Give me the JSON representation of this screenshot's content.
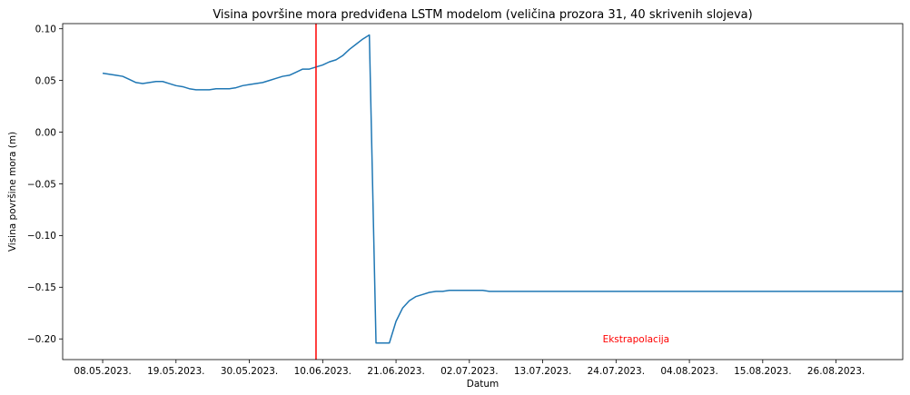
{
  "chart_data": {
    "type": "line",
    "title": "Visina površine mora predviđena LSTM modelom (veličina prozora 31, 40 skrivenih slojeva)",
    "xlabel": "Datum",
    "ylabel": "Visina površine mora (m)",
    "x_start_date": "2023-05-08",
    "xlim": [
      "2023-05-02",
      "2023-09-05"
    ],
    "ylim": [
      -0.22,
      0.105
    ],
    "x_ticks": [
      {
        "date": "2023-05-08",
        "label": "08.05.2023."
      },
      {
        "date": "2023-05-19",
        "label": "19.05.2023."
      },
      {
        "date": "2023-05-30",
        "label": "30.05.2023."
      },
      {
        "date": "2023-06-10",
        "label": "10.06.2023."
      },
      {
        "date": "2023-06-21",
        "label": "21.06.2023."
      },
      {
        "date": "2023-07-02",
        "label": "02.07.2023."
      },
      {
        "date": "2023-07-13",
        "label": "13.07.2023."
      },
      {
        "date": "2023-07-24",
        "label": "24.07.2023."
      },
      {
        "date": "2023-08-04",
        "label": "04.08.2023."
      },
      {
        "date": "2023-08-15",
        "label": "15.08.2023."
      },
      {
        "date": "2023-08-26",
        "label": "26.08.2023."
      }
    ],
    "y_ticks": [
      {
        "value": 0.1,
        "label": "0.10"
      },
      {
        "value": 0.05,
        "label": "0.05"
      },
      {
        "value": 0.0,
        "label": "0.00"
      },
      {
        "value": -0.05,
        "label": "−0.05"
      },
      {
        "value": -0.1,
        "label": "−0.10"
      },
      {
        "value": -0.15,
        "label": "−0.15"
      },
      {
        "value": -0.2,
        "label": "−0.20"
      }
    ],
    "series": [
      {
        "color": "#1f77b4",
        "values": [
          0.057,
          0.056,
          0.055,
          0.054,
          0.051,
          0.048,
          0.047,
          0.048,
          0.049,
          0.049,
          0.047,
          0.045,
          0.044,
          0.042,
          0.041,
          0.041,
          0.041,
          0.042,
          0.042,
          0.042,
          0.043,
          0.045,
          0.046,
          0.047,
          0.048,
          0.05,
          0.052,
          0.054,
          0.055,
          0.058,
          0.061,
          0.061,
          0.063,
          0.065,
          0.068,
          0.07,
          0.074,
          0.08,
          0.085,
          0.09,
          0.094,
          -0.204,
          -0.204,
          -0.204,
          -0.183,
          -0.17,
          -0.163,
          -0.159,
          -0.157,
          -0.155,
          -0.154,
          -0.154,
          -0.153,
          -0.153,
          -0.153,
          -0.153,
          -0.153,
          -0.153,
          -0.154,
          -0.154,
          -0.154,
          -0.154,
          -0.154,
          -0.154,
          -0.154,
          -0.154,
          -0.154,
          -0.154,
          -0.154,
          -0.154,
          -0.154,
          -0.154,
          -0.154,
          -0.154,
          -0.154,
          -0.154,
          -0.154,
          -0.154,
          -0.154,
          -0.154,
          -0.154,
          -0.154,
          -0.154,
          -0.154,
          -0.154,
          -0.154,
          -0.154,
          -0.154,
          -0.154,
          -0.154,
          -0.154,
          -0.154,
          -0.154,
          -0.154,
          -0.154,
          -0.154,
          -0.154,
          -0.154,
          -0.154,
          -0.154,
          -0.154,
          -0.154,
          -0.154,
          -0.154,
          -0.154,
          -0.154,
          -0.154,
          -0.154,
          -0.154,
          -0.154,
          -0.154,
          -0.154,
          -0.154,
          -0.154,
          -0.154,
          -0.154,
          -0.154,
          -0.154,
          -0.154,
          -0.154,
          -0.154
        ]
      }
    ],
    "vline": {
      "date": "2023-06-09",
      "color": "#ff0000"
    },
    "annotation": {
      "text": "Ekstrapolacija",
      "date": "2023-07-27",
      "y": -0.2,
      "color": "#ff0000"
    },
    "grid": false
  }
}
